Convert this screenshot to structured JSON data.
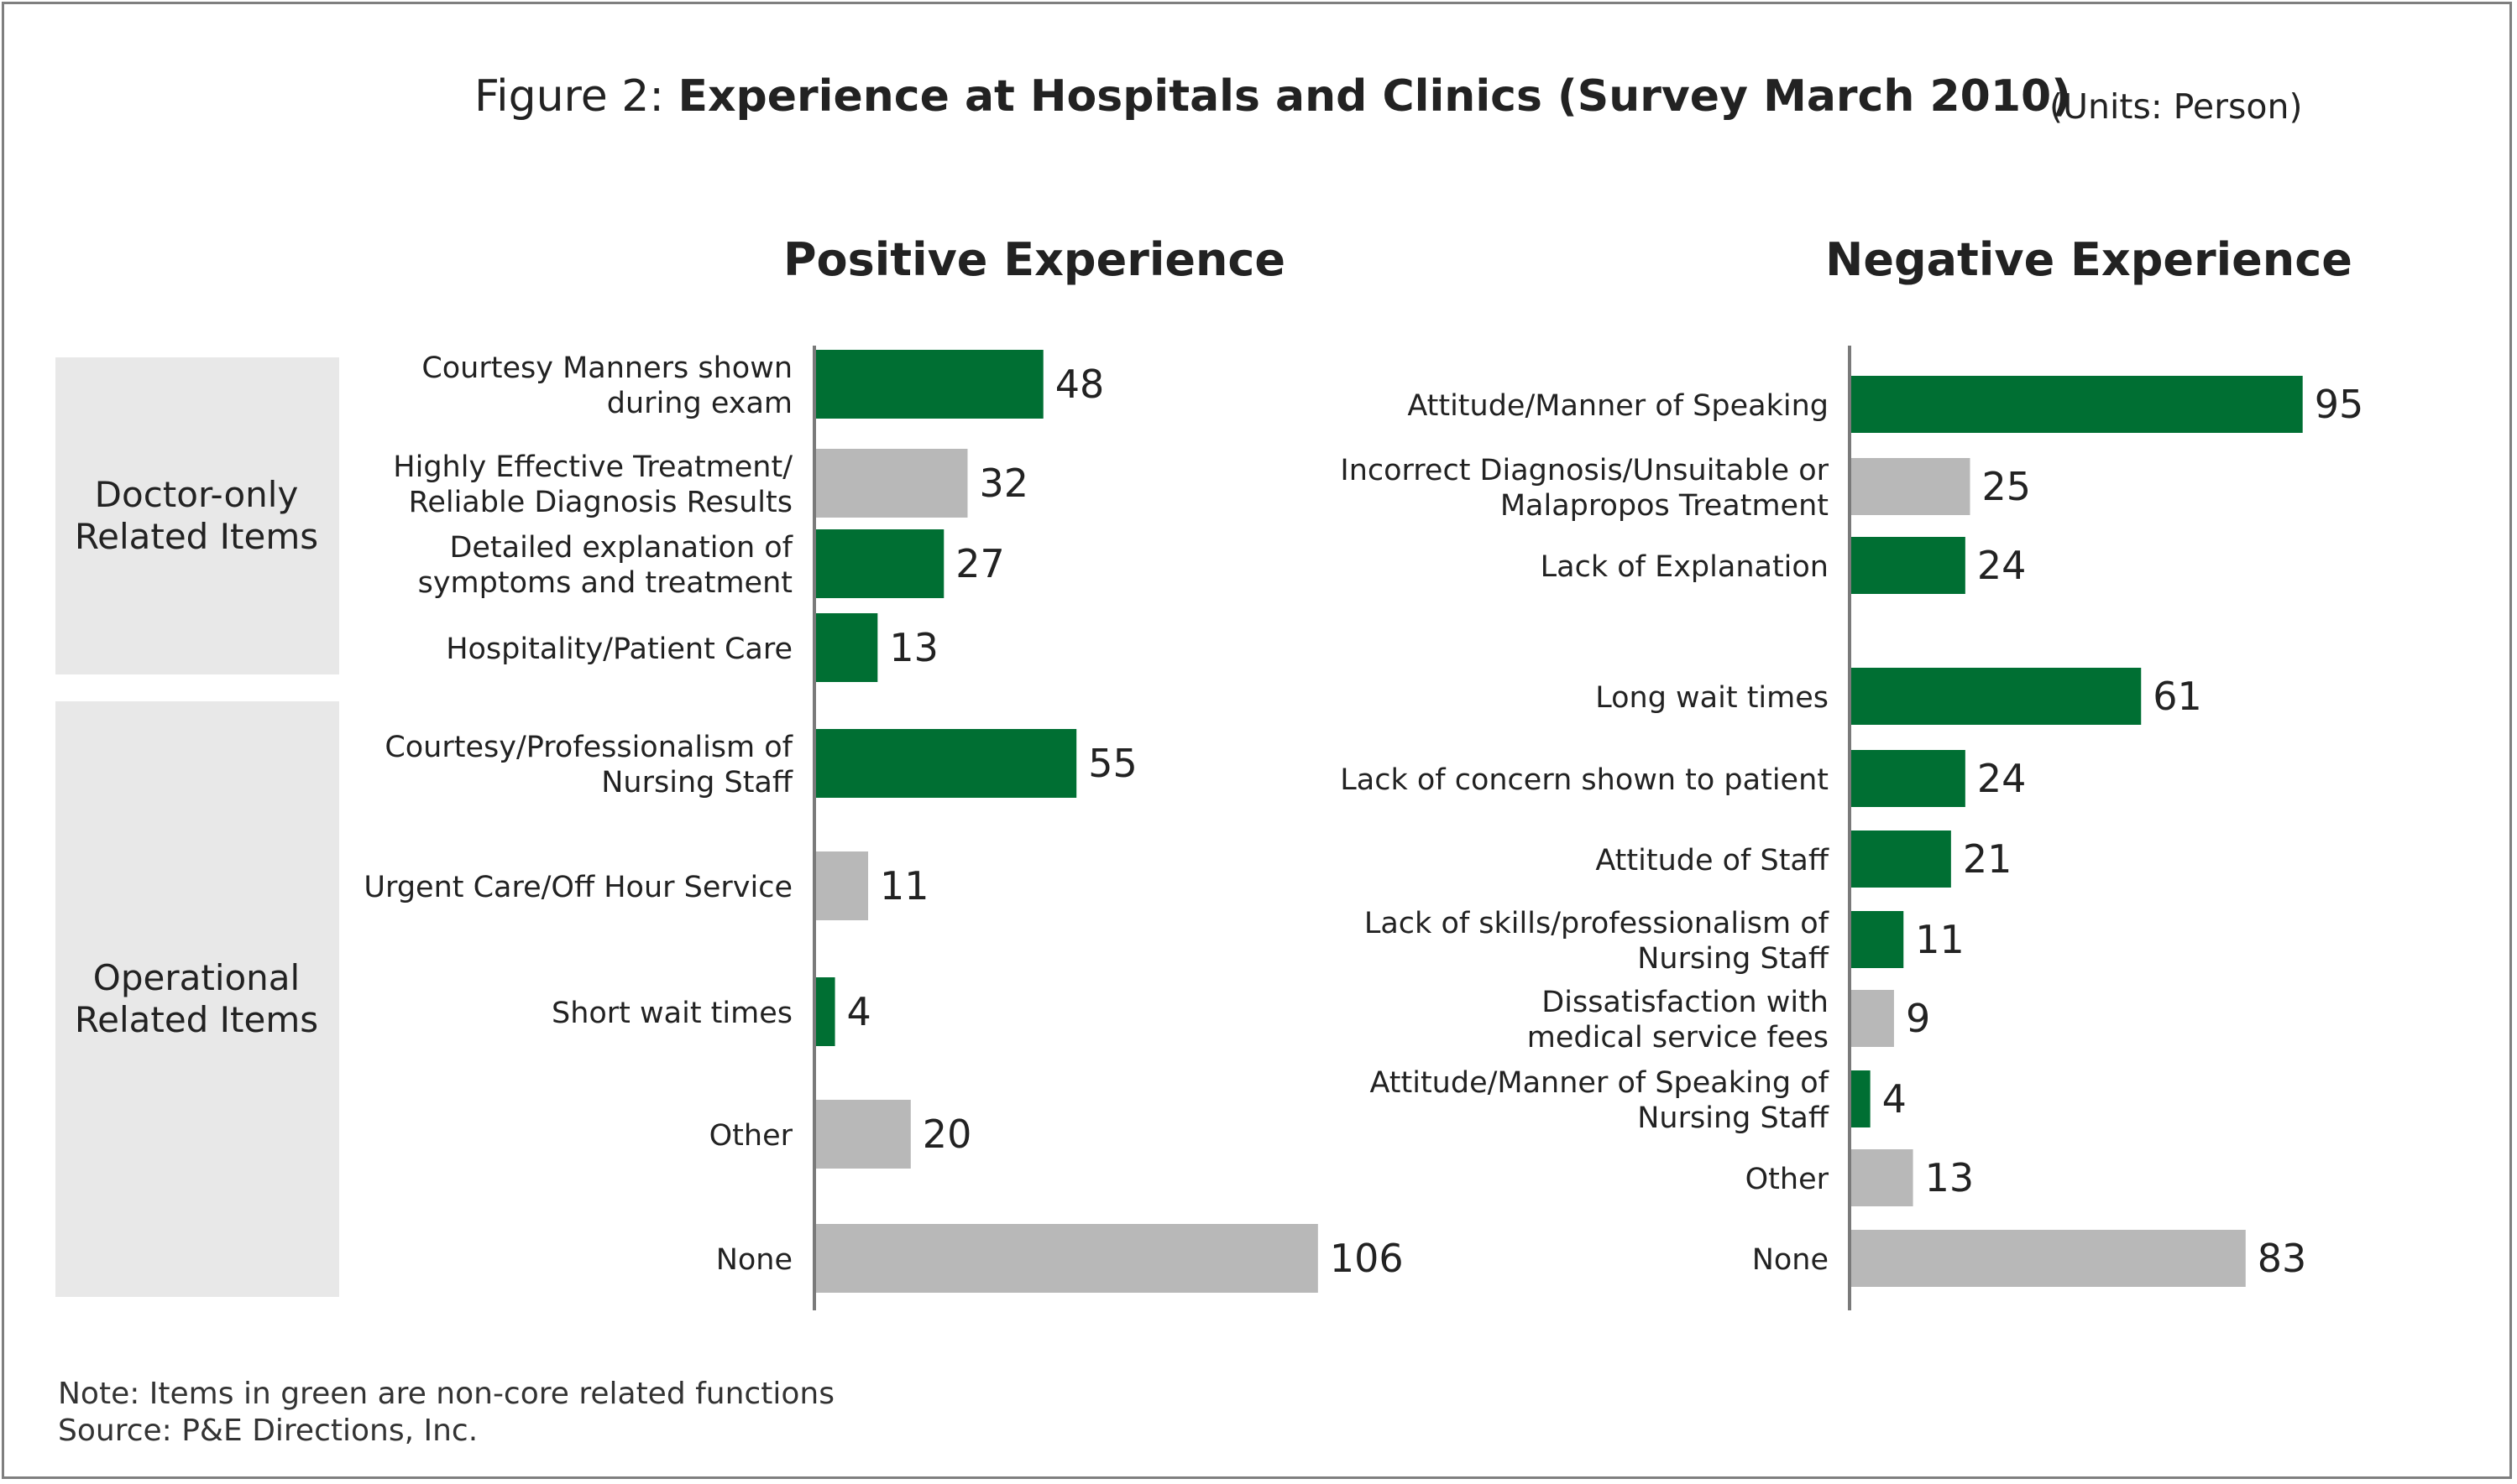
{
  "title": {
    "prefix": "Figure 2: ",
    "main": "Experience at Hospitals and Clinics (Survey March 2010)",
    "units": "(Units: Person)"
  },
  "note": "Note:  Items in green are non-core related functions",
  "source": "Source:  P&E Directions, Inc.",
  "colors": {
    "green": "#006f33",
    "gray": "#b8b8b8",
    "group_bg": "#e8e8e8"
  },
  "chart_data": [
    {
      "type": "bar",
      "orientation": "horizontal",
      "title": "Positive Experience",
      "groups": [
        {
          "label": [
            "Doctor-only",
            "Related Items"
          ],
          "items": 4
        },
        {
          "label": [
            "Operational",
            "Related Items"
          ],
          "items": 5
        }
      ],
      "bars": [
        {
          "label": [
            "Courtesy Manners shown",
            "during exam"
          ],
          "value": 48,
          "color": "green"
        },
        {
          "label": [
            "Highly Effective Treatment/",
            "Reliable Diagnosis Results"
          ],
          "value": 32,
          "color": "gray"
        },
        {
          "label": [
            "Detailed explanation of",
            "symptoms and treatment"
          ],
          "value": 27,
          "color": "green"
        },
        {
          "label": [
            "Hospitality/Patient Care"
          ],
          "value": 13,
          "color": "green"
        },
        {
          "label": [
            "Courtesy/Professionalism of",
            "Nursing Staff"
          ],
          "value": 55,
          "color": "green"
        },
        {
          "label": [
            "Urgent Care/Off Hour Service"
          ],
          "value": 11,
          "color": "gray"
        },
        {
          "label": [
            "Short wait times"
          ],
          "value": 4,
          "color": "green"
        },
        {
          "label": [
            "Other"
          ],
          "value": 20,
          "color": "gray"
        },
        {
          "label": [
            "None"
          ],
          "value": 106,
          "color": "gray"
        }
      ]
    },
    {
      "type": "bar",
      "orientation": "horizontal",
      "title": "Negative Experience",
      "bars": [
        {
          "label": [
            "Attitude/Manner of Speaking"
          ],
          "value": 95,
          "color": "green"
        },
        {
          "label": [
            "Incorrect Diagnosis/Unsuitable or",
            "Malapropos Treatment"
          ],
          "value": 25,
          "color": "gray"
        },
        {
          "label": [
            "Lack of Explanation"
          ],
          "value": 24,
          "color": "green"
        },
        {
          "label": [
            "Long wait times"
          ],
          "value": 61,
          "color": "green"
        },
        {
          "label": [
            "Lack of concern shown to patient"
          ],
          "value": 24,
          "color": "green"
        },
        {
          "label": [
            "Attitude of Staff"
          ],
          "value": 21,
          "color": "green"
        },
        {
          "label": [
            "Lack of skills/professionalism of",
            "Nursing Staff"
          ],
          "value": 11,
          "color": "green"
        },
        {
          "label": [
            "Dissatisfaction with",
            "medical service fees"
          ],
          "value": 9,
          "color": "gray"
        },
        {
          "label": [
            "Attitude/Manner of Speaking of",
            "Nursing Staff"
          ],
          "value": 4,
          "color": "green"
        },
        {
          "label": [
            "Other"
          ],
          "value": 13,
          "color": "gray"
        },
        {
          "label": [
            "None"
          ],
          "value": 83,
          "color": "gray"
        }
      ]
    }
  ]
}
